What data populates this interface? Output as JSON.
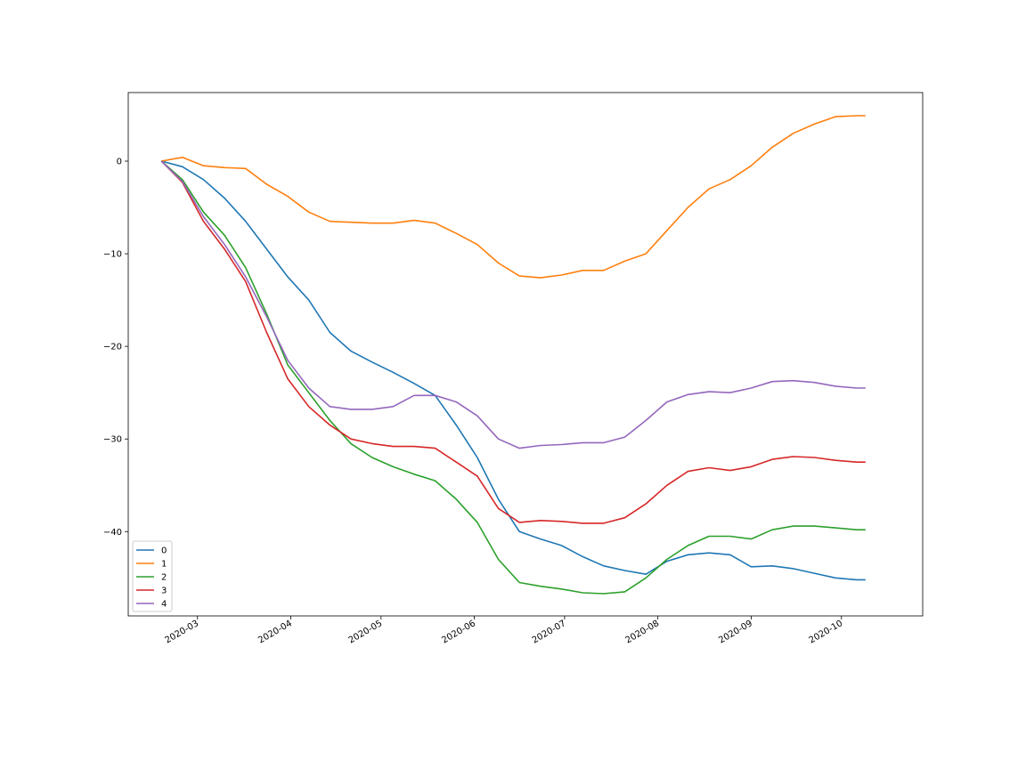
{
  "chart_data": {
    "type": "line",
    "title": "",
    "xlabel": "",
    "ylabel": "",
    "x_ticks": [
      "2020-03",
      "2020-04",
      "2020-05",
      "2020-06",
      "2020-07",
      "2020-08",
      "2020-09",
      "2020-10"
    ],
    "x_tick_dates": [
      "2020-03-01",
      "2020-04-01",
      "2020-05-01",
      "2020-06-01",
      "2020-07-01",
      "2020-08-01",
      "2020-09-01",
      "2020-10-01"
    ],
    "y_ticks": [
      0,
      -10,
      -20,
      -30,
      -40
    ],
    "xlim": [
      "2020-02-07",
      "2020-10-28"
    ],
    "ylim": [
      -49.1,
      7.4
    ],
    "grid": false,
    "legend_position": "lower-left",
    "x": [
      "2020-02-18",
      "2020-02-25",
      "2020-03-03",
      "2020-03-10",
      "2020-03-17",
      "2020-03-24",
      "2020-03-31",
      "2020-04-07",
      "2020-04-14",
      "2020-04-21",
      "2020-04-28",
      "2020-05-05",
      "2020-05-12",
      "2020-05-19",
      "2020-05-26",
      "2020-06-02",
      "2020-06-09",
      "2020-06-16",
      "2020-06-23",
      "2020-06-30",
      "2020-07-07",
      "2020-07-14",
      "2020-07-21",
      "2020-07-28",
      "2020-08-04",
      "2020-08-11",
      "2020-08-18",
      "2020-08-25",
      "2020-09-01",
      "2020-09-08",
      "2020-09-15",
      "2020-09-22",
      "2020-09-29",
      "2020-10-06",
      "2020-10-09"
    ],
    "series": [
      {
        "name": "0",
        "color": "#1f77b4",
        "values": [
          0,
          -0.6,
          -2.0,
          -4.0,
          -6.5,
          -9.5,
          -12.5,
          -15.0,
          -18.5,
          -20.5,
          -21.7,
          -22.8,
          -24.0,
          -25.3,
          -28.5,
          -32.0,
          -36.5,
          -40.0,
          -40.8,
          -41.5,
          -42.7,
          -43.7,
          -44.2,
          -44.6,
          -43.2,
          -42.5,
          -42.3,
          -42.5,
          -43.8,
          -43.7,
          -44.0,
          -44.5,
          -45.0,
          -45.2,
          -45.2
        ]
      },
      {
        "name": "1",
        "color": "#ff7f0e",
        "values": [
          0,
          0.4,
          -0.5,
          -0.7,
          -0.8,
          -2.5,
          -3.8,
          -5.5,
          -6.5,
          -6.6,
          -6.7,
          -6.7,
          -6.4,
          -6.7,
          -7.8,
          -9.0,
          -11.0,
          -12.4,
          -12.6,
          -12.3,
          -11.8,
          -11.8,
          -10.8,
          -10.0,
          -7.5,
          -5.0,
          -3.0,
          -2.0,
          -0.5,
          1.5,
          3.0,
          4.0,
          4.8,
          4.9,
          4.9
        ]
      },
      {
        "name": "2",
        "color": "#2ca02c",
        "values": [
          0,
          -2.0,
          -5.5,
          -8.0,
          -11.5,
          -16.5,
          -22.0,
          -25.0,
          -28.0,
          -30.5,
          -32.0,
          -33.0,
          -33.8,
          -34.5,
          -36.5,
          -39.0,
          -43.0,
          -45.5,
          -45.9,
          -46.2,
          -46.6,
          -46.7,
          -46.5,
          -45.0,
          -43.0,
          -41.5,
          -40.5,
          -40.5,
          -40.8,
          -39.8,
          -39.4,
          -39.4,
          -39.6,
          -39.8,
          -39.8
        ]
      },
      {
        "name": "3",
        "color": "#d62728",
        "values": [
          0,
          -2.3,
          -6.5,
          -9.5,
          -13.0,
          -18.5,
          -23.5,
          -26.5,
          -28.5,
          -30.0,
          -30.5,
          -30.8,
          -30.8,
          -31.0,
          -32.5,
          -34.0,
          -37.5,
          -39.0,
          -38.8,
          -38.9,
          -39.1,
          -39.1,
          -38.5,
          -37.0,
          -35.0,
          -33.5,
          -33.1,
          -33.4,
          -33.0,
          -32.2,
          -31.9,
          -32.0,
          -32.3,
          -32.5,
          -32.5
        ]
      },
      {
        "name": "4",
        "color": "#9467bd",
        "values": [
          0,
          -2.2,
          -6.0,
          -9.0,
          -12.5,
          -16.8,
          -21.5,
          -24.5,
          -26.5,
          -26.8,
          -26.8,
          -26.5,
          -25.3,
          -25.3,
          -26.0,
          -27.5,
          -30.0,
          -31.0,
          -30.7,
          -30.6,
          -30.4,
          -30.4,
          -29.8,
          -28.0,
          -26.0,
          -25.2,
          -24.9,
          -25.0,
          -24.5,
          -23.8,
          -23.7,
          -23.9,
          -24.3,
          -24.5,
          -24.5
        ]
      }
    ]
  }
}
